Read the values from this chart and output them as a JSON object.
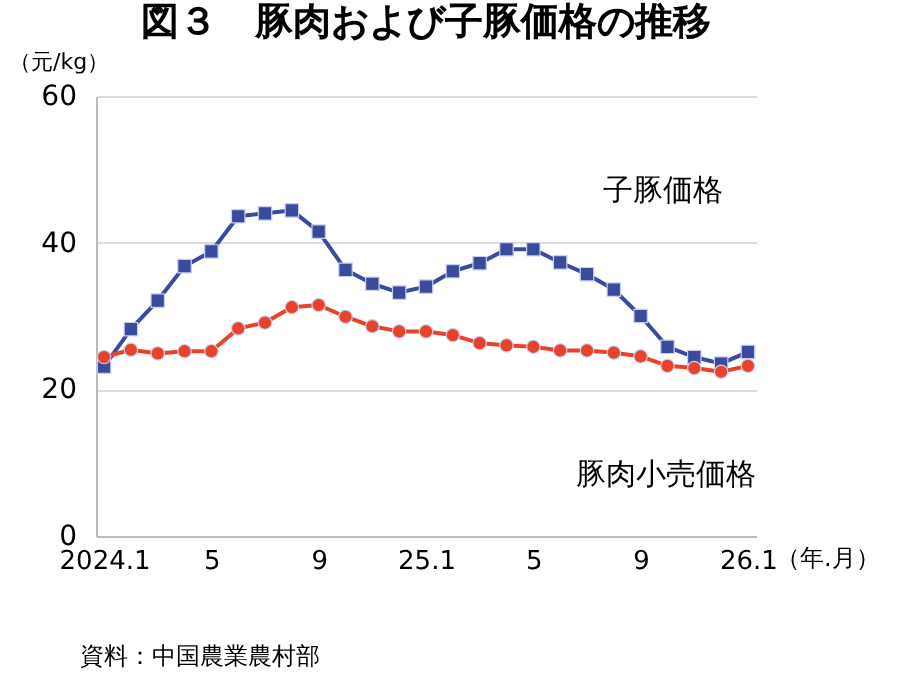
{
  "chart_data": {
    "type": "line",
    "title": "図３　豚肉および子豚価格の推移",
    "ylabel": "（元/kg）",
    "xlabel": "（年.月）",
    "annotations": [
      "資料：中国農業農村部"
    ],
    "categories": [
      "2024.1",
      null,
      null,
      null,
      "5",
      null,
      null,
      null,
      "9",
      null,
      null,
      null,
      "25.1",
      null,
      null,
      null,
      "5",
      null,
      null,
      null,
      "9",
      null,
      null,
      null,
      "26.1"
    ],
    "series": [
      {
        "name": "子豚価格",
        "color": "#3a4a9c",
        "marker": "square",
        "values": [
          23.1,
          28.2,
          32.1,
          36.8,
          38.8,
          43.6,
          44.0,
          44.4,
          41.5,
          36.3,
          34.4,
          33.2,
          34.0,
          36.1,
          37.2,
          39.1,
          39.1,
          37.3,
          35.7,
          33.6,
          30.0,
          25.8,
          24.4,
          23.5,
          25.1
        ]
      },
      {
        "name": "豚肉小売価格",
        "color": "#e8432a",
        "marker": "circle",
        "values": [
          24.4,
          25.4,
          24.9,
          25.2,
          25.2,
          28.3,
          29.1,
          31.2,
          31.5,
          29.9,
          28.6,
          27.9,
          27.9,
          27.4,
          26.3,
          26.0,
          25.8,
          25.3,
          25.3,
          25.0,
          24.5,
          23.2,
          22.9,
          22.4,
          23.2
        ]
      }
    ],
    "ylim": [
      0,
      60
    ],
    "yticks": [
      0,
      20,
      40,
      60
    ],
    "grid": "y",
    "legend": false,
    "line_style": "solid"
  }
}
